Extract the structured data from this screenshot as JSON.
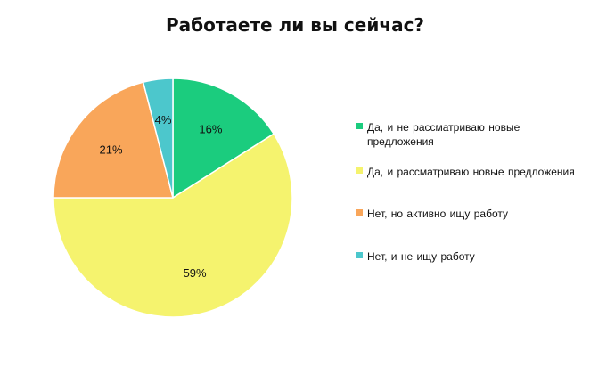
{
  "chart_data": {
    "type": "pie",
    "title": "Работаете ли вы сейчас?",
    "slices": [
      {
        "label": "Да, и не рассматриваю новые предложения",
        "value": 16,
        "value_label": "16%",
        "color": "#1bcc7e"
      },
      {
        "label": "Да, и рассматриваю новые предложения",
        "value": 59,
        "value_label": "59%",
        "color": "#f5f36e"
      },
      {
        "label": "Нет, но активно ищу работу",
        "value": 21,
        "value_label": "21%",
        "color": "#f9a65a"
      },
      {
        "label": "Нет, и не ищу работу",
        "value": 4,
        "value_label": "4%",
        "color": "#4cc7cc"
      }
    ],
    "start_angle_deg": 0,
    "direction": "clockwise",
    "legend_position": "right"
  }
}
